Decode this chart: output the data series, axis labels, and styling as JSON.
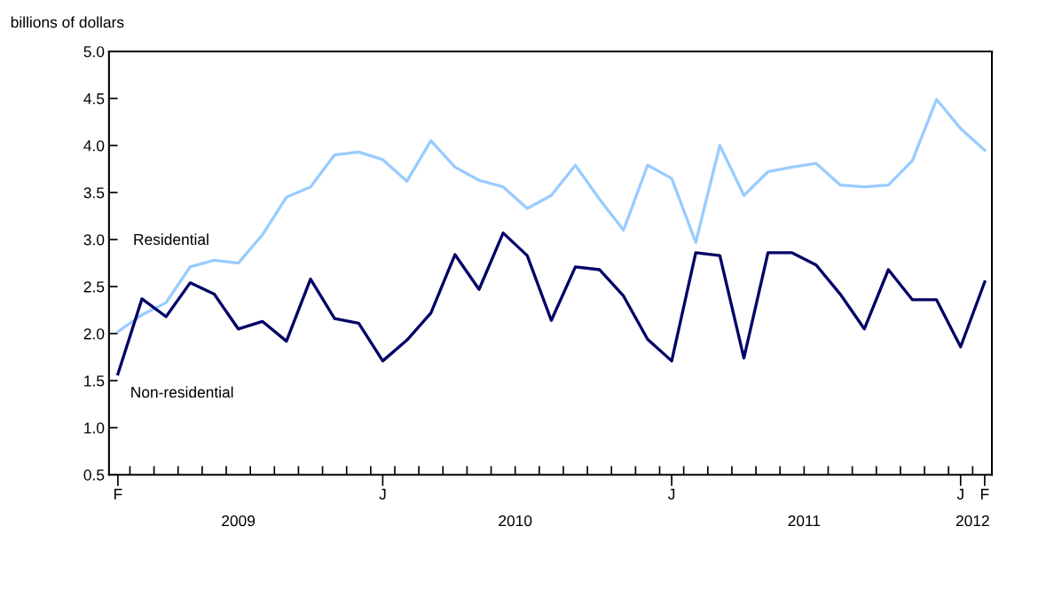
{
  "chart_data": {
    "type": "line",
    "ylabel": "billions of dollars",
    "categories": [
      "F",
      null,
      null,
      null,
      null,
      null,
      null,
      null,
      null,
      null,
      null,
      "J",
      null,
      null,
      null,
      null,
      null,
      null,
      null,
      null,
      null,
      null,
      null,
      "J",
      null,
      null,
      null,
      null,
      null,
      null,
      null,
      null,
      null,
      null,
      null,
      "J",
      "F"
    ],
    "series": [
      {
        "name": "Residential",
        "color": "#99ccff",
        "values": [
          2.02,
          2.2,
          2.33,
          2.71,
          2.78,
          2.75,
          3.05,
          3.45,
          3.56,
          3.9,
          3.93,
          3.85,
          3.62,
          4.05,
          3.77,
          3.63,
          3.56,
          3.33,
          3.47,
          3.79,
          3.43,
          3.1,
          3.79,
          3.65,
          2.97,
          4.0,
          3.47,
          3.72,
          3.77,
          3.81,
          3.58,
          3.56,
          3.58,
          3.84,
          4.49,
          4.18,
          3.95
        ]
      },
      {
        "name": "Non-residential",
        "color": "#000066",
        "values": [
          1.57,
          2.37,
          2.18,
          2.54,
          2.42,
          2.05,
          2.13,
          1.92,
          2.58,
          2.16,
          2.11,
          1.71,
          1.93,
          2.22,
          2.84,
          2.47,
          3.07,
          2.83,
          2.14,
          2.71,
          2.68,
          2.4,
          1.94,
          1.71,
          2.86,
          2.83,
          1.74,
          2.86,
          2.86,
          2.73,
          2.42,
          2.05,
          2.68,
          2.36,
          2.36,
          1.86,
          2.55
        ]
      }
    ],
    "ylim": [
      0.5,
      5.0
    ],
    "yticks": [
      0.5,
      {
        "value": 1,
        "label": "1.0"
      },
      1.5,
      {
        "value": 2,
        "label": "2.0"
      },
      2.5,
      {
        "value": 3,
        "label": "3.0"
      },
      3.5,
      {
        "value": 4,
        "label": "4.0"
      },
      4.5,
      {
        "value": 5,
        "label": "5.0"
      }
    ],
    "annotations": [
      "2009",
      "2010",
      "2011",
      "2012"
    ],
    "grid": false,
    "legend": false,
    "marker": "none",
    "line_style": "solid"
  }
}
